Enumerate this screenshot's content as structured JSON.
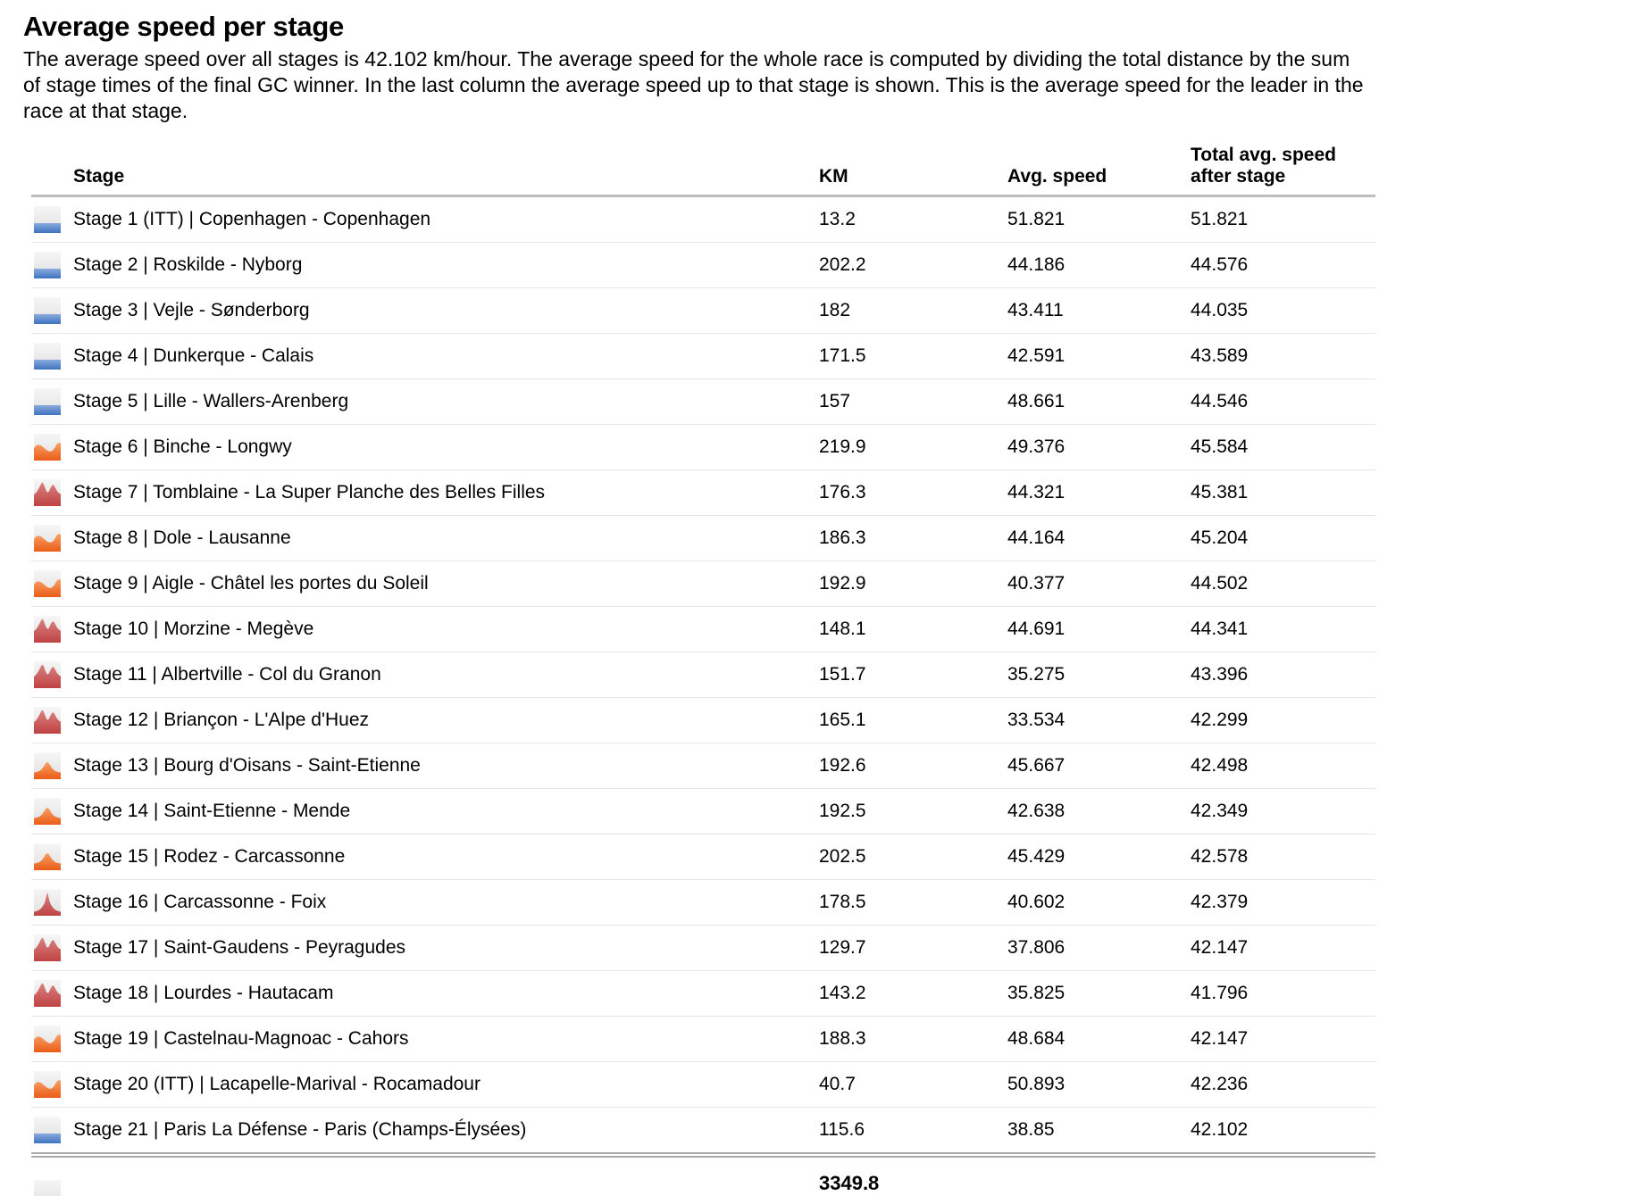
{
  "page": {
    "title": "Average speed per stage",
    "description": "The average speed over all stages is 42.102 km/hour. The average speed for the whole race is computed by dividing the total distance by the sum of stage times of the final GC winner. In the last column the average speed up to that stage is shown. This is the average speed for the leader in the race at that stage."
  },
  "table": {
    "headers": {
      "stage": "Stage",
      "km": "KM",
      "avg_speed": "Avg. speed",
      "total_avg_speed": "Total avg. speed after stage"
    },
    "rows": [
      {
        "icon": "flat",
        "label": "Stage 1 (ITT) | Copenhagen - Copenhagen",
        "km": "13.2",
        "avg_speed": "51.821",
        "total_avg_speed": "51.821"
      },
      {
        "icon": "flat",
        "label": "Stage 2 | Roskilde - Nyborg",
        "km": "202.2",
        "avg_speed": "44.186",
        "total_avg_speed": "44.576"
      },
      {
        "icon": "flat",
        "label": "Stage 3 | Vejle - Sønderborg",
        "km": "182",
        "avg_speed": "43.411",
        "total_avg_speed": "44.035"
      },
      {
        "icon": "flat",
        "label": "Stage 4 | Dunkerque - Calais",
        "km": "171.5",
        "avg_speed": "42.591",
        "total_avg_speed": "43.589"
      },
      {
        "icon": "flat",
        "label": "Stage 5 | Lille - Wallers-Arenberg",
        "km": "157",
        "avg_speed": "48.661",
        "total_avg_speed": "44.546"
      },
      {
        "icon": "hilly",
        "label": "Stage 6 | Binche - Longwy",
        "km": "219.9",
        "avg_speed": "49.376",
        "total_avg_speed": "45.584"
      },
      {
        "icon": "mountain",
        "label": "Stage 7 | Tomblaine - La Super Planche des Belles Filles",
        "km": "176.3",
        "avg_speed": "44.321",
        "total_avg_speed": "45.381"
      },
      {
        "icon": "hilly",
        "label": "Stage 8 | Dole - Lausanne",
        "km": "186.3",
        "avg_speed": "44.164",
        "total_avg_speed": "45.204"
      },
      {
        "icon": "hilly",
        "label": "Stage 9 | Aigle - Châtel les portes du Soleil",
        "km": "192.9",
        "avg_speed": "40.377",
        "total_avg_speed": "44.502"
      },
      {
        "icon": "mountain",
        "label": "Stage 10 | Morzine - Megève",
        "km": "148.1",
        "avg_speed": "44.691",
        "total_avg_speed": "44.341"
      },
      {
        "icon": "mountain",
        "label": "Stage 11 | Albertville - Col du Granon",
        "km": "151.7",
        "avg_speed": "35.275",
        "total_avg_speed": "43.396"
      },
      {
        "icon": "mountain",
        "label": "Stage 12 | Briançon - L'Alpe d'Huez",
        "km": "165.1",
        "avg_speed": "33.534",
        "total_avg_speed": "42.299"
      },
      {
        "icon": "hill",
        "label": "Stage 13 | Bourg d'Oisans - Saint-Etienne",
        "km": "192.6",
        "avg_speed": "45.667",
        "total_avg_speed": "42.498"
      },
      {
        "icon": "hill",
        "label": "Stage 14 | Saint-Etienne - Mende",
        "km": "192.5",
        "avg_speed": "42.638",
        "total_avg_speed": "42.349"
      },
      {
        "icon": "hill",
        "label": "Stage 15 | Rodez - Carcassonne",
        "km": "202.5",
        "avg_speed": "45.429",
        "total_avg_speed": "42.578"
      },
      {
        "icon": "peak",
        "label": "Stage 16 | Carcassonne - Foix",
        "km": "178.5",
        "avg_speed": "40.602",
        "total_avg_speed": "42.379"
      },
      {
        "icon": "mountain",
        "label": "Stage 17 | Saint-Gaudens - Peyragudes",
        "km": "129.7",
        "avg_speed": "37.806",
        "total_avg_speed": "42.147"
      },
      {
        "icon": "mountain",
        "label": "Stage 18 | Lourdes - Hautacam",
        "km": "143.2",
        "avg_speed": "35.825",
        "total_avg_speed": "41.796"
      },
      {
        "icon": "hilly",
        "label": "Stage 19 | Castelnau-Magnoac - Cahors",
        "km": "188.3",
        "avg_speed": "48.684",
        "total_avg_speed": "42.147"
      },
      {
        "icon": "hilly",
        "label": "Stage 20 (ITT) | Lacapelle-Marival - Rocamadour",
        "km": "40.7",
        "avg_speed": "50.893",
        "total_avg_speed": "42.236"
      },
      {
        "icon": "flat",
        "label": "Stage 21 | Paris La Défense - Paris (Champs-Élysées)",
        "km": "115.6",
        "avg_speed": "38.85",
        "total_avg_speed": "42.102"
      }
    ],
    "total_km": "3349.8"
  },
  "colors": {
    "icon_bg_top": "#f6f6f6",
    "icon_bg_bottom": "#e0e0e0",
    "flat_blue_top": "#8aabdd",
    "flat_blue_bottom": "#3d73c0",
    "hilly_orange_top": "#f8a066",
    "hilly_orange_bottom": "#eb5c17",
    "mountain_red_top": "#da8080",
    "mountain_red_bottom": "#c04343",
    "row_separator": "#e5e5e5",
    "header_border": "#bcbcbc"
  }
}
